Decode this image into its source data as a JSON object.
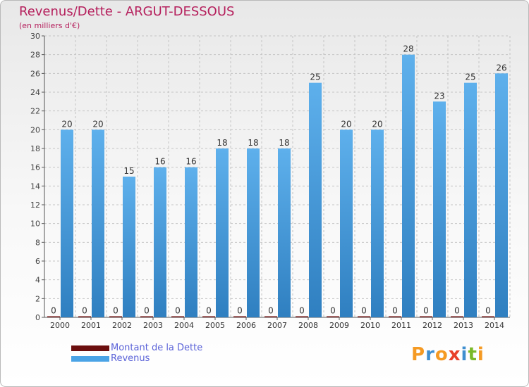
{
  "title": "Revenus/Dette - ARGUT-DESSOUS",
  "subtitle": "(en milliers d'€)",
  "logo": {
    "text": "Proxiti",
    "letters": [
      "P",
      "r",
      "o",
      "x",
      "i",
      "t",
      "i"
    ],
    "colors": [
      "#f59a23",
      "#3f8fd0",
      "#f59a23",
      "#e8402a",
      "#3f8fd0",
      "#7ab929",
      "#f59a23"
    ]
  },
  "legend": [
    {
      "label": "Montant de la Dette",
      "color": "#6b0e0e"
    },
    {
      "label": "Revenus",
      "color": "#4aa3e6"
    }
  ],
  "chart_data": {
    "type": "bar",
    "categories": [
      "2000",
      "2001",
      "2002",
      "2003",
      "2004",
      "2005",
      "2006",
      "2007",
      "2008",
      "2009",
      "2010",
      "2011",
      "2012",
      "2013",
      "2014"
    ],
    "series": [
      {
        "name": "Montant de la Dette",
        "color": "#6b0e0e",
        "values": [
          0,
          0,
          0,
          0,
          0,
          0,
          0,
          0,
          0,
          0,
          0,
          0,
          0,
          0,
          0
        ]
      },
      {
        "name": "Revenus",
        "color": "#4aa3e6",
        "values": [
          20,
          20,
          15,
          16,
          16,
          18,
          18,
          18,
          25,
          20,
          20,
          28,
          23,
          25,
          26
        ]
      }
    ],
    "ylim": [
      0,
      30
    ],
    "yticks": [
      0,
      2,
      4,
      6,
      8,
      10,
      12,
      14,
      16,
      18,
      20,
      22,
      24,
      26,
      28,
      30
    ],
    "grid": true,
    "legend_position": "bottom-left"
  }
}
